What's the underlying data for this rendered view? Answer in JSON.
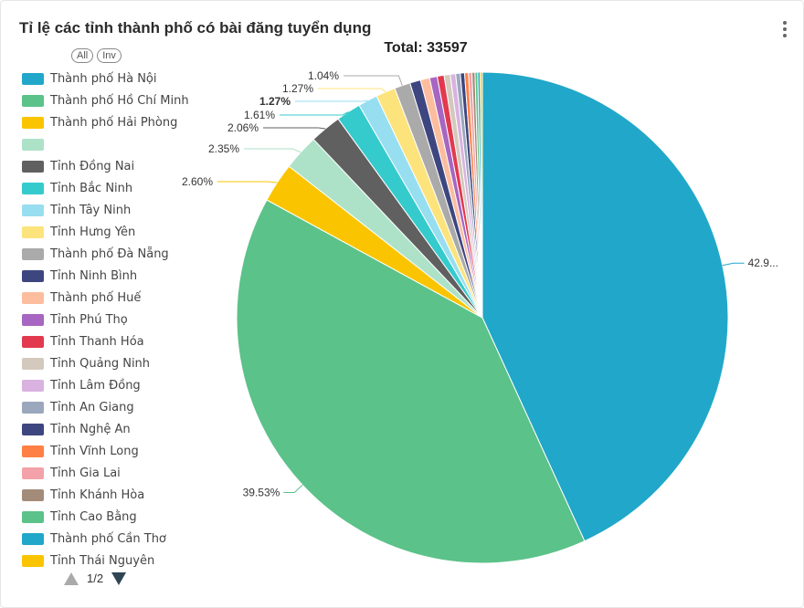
{
  "header": {
    "title": "Tỉ lệ các tỉnh thành phố có bài đăng tuyển dụng",
    "menu_icon": "more-vertical-icon"
  },
  "legend_controls": {
    "all_label": "All",
    "inv_label": "Inv"
  },
  "legend": {
    "items": [
      {
        "label": "Thành phố Hà Nội",
        "color": "#21a7c9"
      },
      {
        "label": "Thành phố Hồ Chí Minh",
        "color": "#5bc289"
      },
      {
        "label": "Thành phố Hải Phòng",
        "color": "#fbc400"
      },
      {
        "label": "",
        "color": "#ade2c8"
      },
      {
        "label": "Tỉnh Đồng Nai",
        "color": "#606060"
      },
      {
        "label": "Tỉnh Bắc Ninh",
        "color": "#35cbcc"
      },
      {
        "label": "Tỉnh Tây Ninh",
        "color": "#97def0"
      },
      {
        "label": "Tỉnh Hưng Yên",
        "color": "#fde37c"
      },
      {
        "label": "Thành phố Đà Nẵng",
        "color": "#aaaaaa"
      },
      {
        "label": "Tỉnh Ninh Bình",
        "color": "#3e4680"
      },
      {
        "label": "Thành phố Huế",
        "color": "#fcbd9f"
      },
      {
        "label": "Tỉnh Phú Thọ",
        "color": "#a666c2"
      },
      {
        "label": "Tỉnh Thanh Hóa",
        "color": "#e2394f"
      },
      {
        "label": "Tỉnh Quảng Ninh",
        "color": "#d3c9bc"
      },
      {
        "label": "Tỉnh Lâm Đồng",
        "color": "#d9b2e0"
      },
      {
        "label": "Tỉnh An Giang",
        "color": "#9aa7bd"
      },
      {
        "label": "Tỉnh Nghệ An",
        "color": "#3e4680"
      },
      {
        "label": "Tỉnh Vĩnh Long",
        "color": "#fe8045"
      },
      {
        "label": "Tỉnh Gia Lai",
        "color": "#f2a2a8"
      },
      {
        "label": "Tỉnh Khánh Hòa",
        "color": "#a38b7a"
      },
      {
        "label": "Tỉnh Cao Bằng",
        "color": "#5bc289"
      },
      {
        "label": "Thành phố Cần Thơ",
        "color": "#21a7c9"
      },
      {
        "label": "Tỉnh Thái Nguyên",
        "color": "#fbc400"
      }
    ]
  },
  "pager": {
    "text": "1/2",
    "up_icon": "triangle-up-icon",
    "down_icon": "triangle-down-icon"
  },
  "chart_data": {
    "type": "pie",
    "title": "Tỉ lệ các tỉnh thành phố có bài đăng tuyển dụng",
    "total_label": "Total: 33597",
    "total": 33597,
    "slices": [
      {
        "name": "Thành phố Hà Nội",
        "percent": 42.9,
        "label": "42.9...",
        "color": "#21a7c9"
      },
      {
        "name": "Thành phố Hồ Chí Minh",
        "percent": 39.53,
        "label": "39.53%",
        "color": "#5bc289"
      },
      {
        "name": "Thành phố Hải Phòng",
        "percent": 2.6,
        "label": "2.60%",
        "color": "#fbc400"
      },
      {
        "name": "",
        "percent": 2.35,
        "label": "2.35%",
        "color": "#ade2c8"
      },
      {
        "name": "Tỉnh Đồng Nai",
        "percent": 2.06,
        "label": "2.06%",
        "color": "#606060"
      },
      {
        "name": "Tỉnh Bắc Ninh",
        "percent": 1.61,
        "label": "1.61%",
        "color": "#35cbcc"
      },
      {
        "name": "Tỉnh Tây Ninh",
        "percent": 1.27,
        "label": "1.27%",
        "color": "#97def0",
        "bold": true
      },
      {
        "name": "Tỉnh Hưng Yên",
        "percent": 1.27,
        "label": "1.27%",
        "color": "#fde37c"
      },
      {
        "name": "Thành phố Đà Nẵng",
        "percent": 1.04,
        "label": "1.04%",
        "color": "#aaaaaa"
      },
      {
        "name": "Tỉnh Ninh Bình",
        "percent": 0.7,
        "color": "#3e4680"
      },
      {
        "name": "Thành phố Huế",
        "percent": 0.6,
        "color": "#fcbd9f"
      },
      {
        "name": "Tỉnh Phú Thọ",
        "percent": 0.5,
        "color": "#a666c2"
      },
      {
        "name": "Tỉnh Thanh Hóa",
        "percent": 0.45,
        "color": "#e2394f"
      },
      {
        "name": "Tỉnh Quảng Ninh",
        "percent": 0.4,
        "color": "#d3c9bc"
      },
      {
        "name": "Tỉnh Lâm Đồng",
        "percent": 0.35,
        "color": "#d9b2e0"
      },
      {
        "name": "Tỉnh An Giang",
        "percent": 0.3,
        "color": "#9aa7bd"
      },
      {
        "name": "Tỉnh Nghệ An",
        "percent": 0.28,
        "color": "#3e4680"
      },
      {
        "name": "Tỉnh Vĩnh Long",
        "percent": 0.25,
        "color": "#fe8045"
      },
      {
        "name": "Tỉnh Gia Lai",
        "percent": 0.22,
        "color": "#f2a2a8"
      },
      {
        "name": "Tỉnh Khánh Hòa",
        "percent": 0.2,
        "color": "#a38b7a"
      },
      {
        "name": "Tỉnh Cao Bằng",
        "percent": 0.18,
        "color": "#5bc289"
      },
      {
        "name": "Thành phố Cần Thơ",
        "percent": 0.16,
        "color": "#21a7c9"
      },
      {
        "name": "Tỉnh Thái Nguyên",
        "percent": 0.14,
        "color": "#fbc400"
      }
    ]
  }
}
